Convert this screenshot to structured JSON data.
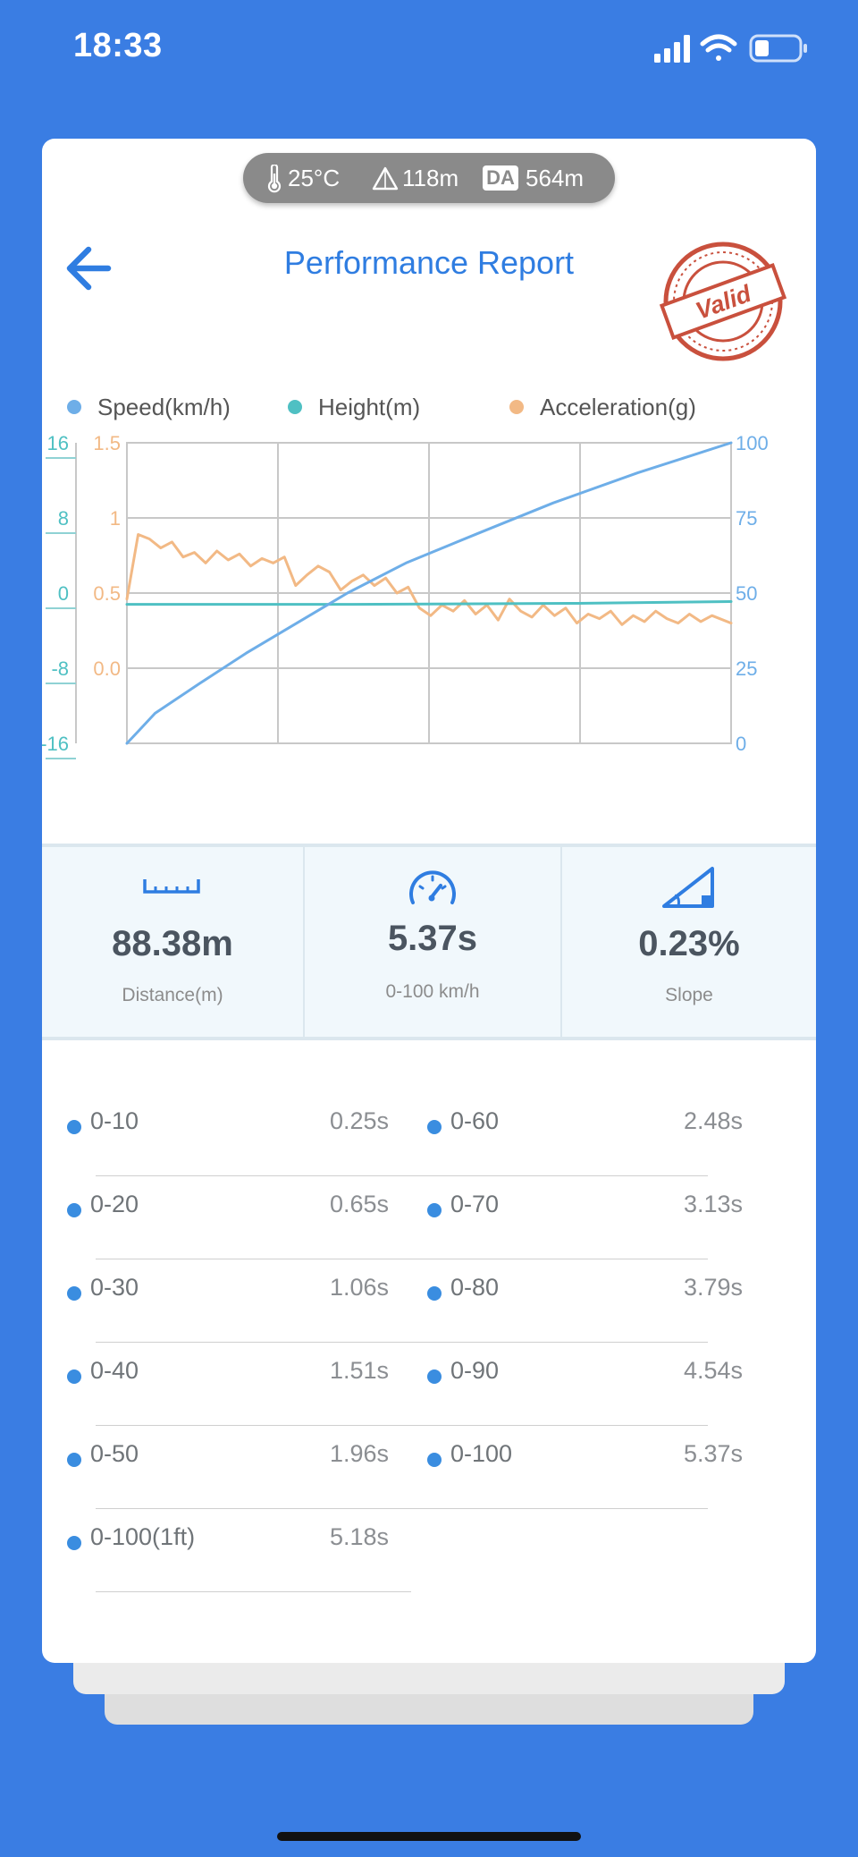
{
  "status_bar": {
    "time": "18:33"
  },
  "conditions": {
    "temperature": "25°C",
    "altitude": "118m",
    "density_altitude_badge": "DA",
    "density_altitude": "564m"
  },
  "header": {
    "title": "Performance Report",
    "stamp_text": "Valid"
  },
  "legend": [
    {
      "label": "Speed(km/h)",
      "color": "#6eaee8"
    },
    {
      "label": "Height(m)",
      "color": "#4fc0c3"
    },
    {
      "label": "Acceleration(g)",
      "color": "#f2b985"
    }
  ],
  "chart_data": {
    "type": "line",
    "x_range": [
      0,
      5.37
    ],
    "axes": {
      "height_ticks": [
        "16",
        "8",
        "0",
        "-8",
        "-16"
      ],
      "acceleration_ticks": [
        "1.5",
        "1",
        "0.5",
        "0.0"
      ],
      "speed_ticks": [
        "100",
        "75",
        "50",
        "25",
        "0"
      ],
      "height_range": [
        -16,
        16
      ],
      "acceleration_range": [
        -0.5,
        1.5
      ],
      "speed_range": [
        0,
        100
      ]
    },
    "grid": true,
    "series": [
      {
        "name": "Speed(km/h)",
        "axis": "speed",
        "color": "#6eaee8",
        "x": [
          0,
          0.1,
          0.25,
          0.65,
          1.06,
          1.51,
          1.96,
          2.48,
          3.13,
          3.79,
          4.54,
          5.37
        ],
        "y": [
          0,
          4,
          10,
          20,
          30,
          40,
          50,
          60,
          70,
          80,
          90,
          100
        ]
      },
      {
        "name": "Height(m)",
        "axis": "height",
        "color": "#4fc0c3",
        "x": [
          0,
          2.0,
          4.0,
          5.37
        ],
        "y": [
          -1.2,
          -1.2,
          -1.1,
          -0.9
        ]
      },
      {
        "name": "Acceleration(g)",
        "axis": "acceleration",
        "color": "#f2b985",
        "x": [
          0,
          0.1,
          0.2,
          0.3,
          0.4,
          0.5,
          0.6,
          0.7,
          0.8,
          0.9,
          1.0,
          1.1,
          1.2,
          1.3,
          1.4,
          1.5,
          1.6,
          1.7,
          1.8,
          1.9,
          2.0,
          2.1,
          2.2,
          2.3,
          2.4,
          2.5,
          2.6,
          2.7,
          2.8,
          2.9,
          3.0,
          3.1,
          3.2,
          3.3,
          3.4,
          3.5,
          3.6,
          3.7,
          3.8,
          3.9,
          4.0,
          4.1,
          4.2,
          4.3,
          4.4,
          4.5,
          4.6,
          4.7,
          4.8,
          4.9,
          5.0,
          5.1,
          5.2,
          5.37
        ],
        "y": [
          0.46,
          0.89,
          0.86,
          0.8,
          0.84,
          0.74,
          0.77,
          0.7,
          0.78,
          0.72,
          0.76,
          0.68,
          0.73,
          0.7,
          0.74,
          0.55,
          0.62,
          0.68,
          0.64,
          0.52,
          0.58,
          0.62,
          0.55,
          0.6,
          0.5,
          0.54,
          0.4,
          0.35,
          0.42,
          0.38,
          0.45,
          0.36,
          0.42,
          0.32,
          0.46,
          0.38,
          0.34,
          0.42,
          0.35,
          0.4,
          0.3,
          0.36,
          0.33,
          0.38,
          0.29,
          0.35,
          0.31,
          0.38,
          0.33,
          0.3,
          0.36,
          0.31,
          0.35,
          0.3
        ]
      }
    ]
  },
  "stats": [
    {
      "value": "88.38m",
      "label": "Distance(m)",
      "icon": "ruler-icon"
    },
    {
      "value": "5.37s",
      "label": "0-100 km/h",
      "icon": "speedometer-icon"
    },
    {
      "value": "0.23%",
      "label": "Slope",
      "icon": "slope-icon"
    }
  ],
  "splits": [
    {
      "range": "0-10",
      "time": "0.25s"
    },
    {
      "range": "0-60",
      "time": "2.48s"
    },
    {
      "range": "0-20",
      "time": "0.65s"
    },
    {
      "range": "0-70",
      "time": "3.13s"
    },
    {
      "range": "0-30",
      "time": "1.06s"
    },
    {
      "range": "0-80",
      "time": "3.79s"
    },
    {
      "range": "0-40",
      "time": "1.51s"
    },
    {
      "range": "0-90",
      "time": "4.54s"
    },
    {
      "range": "0-50",
      "time": "1.96s"
    },
    {
      "range": "0-100",
      "time": "5.37s"
    },
    {
      "range": "0-100(1ft)",
      "time": "5.18s"
    }
  ]
}
